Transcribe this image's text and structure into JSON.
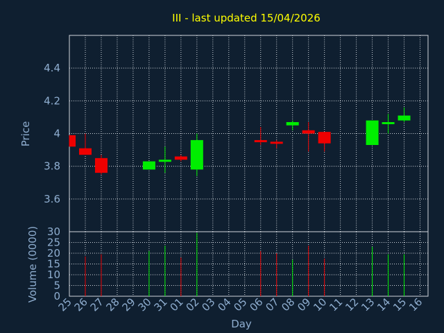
{
  "chart_data": {
    "type": "candlestick",
    "title": "III - last updated 15/04/2026",
    "xlabel": "Day",
    "price_panel": {
      "ylabel": "Price",
      "ylim": [
        3.4,
        4.6
      ],
      "yticks": [
        "3.6",
        "3.8",
        "4",
        "4.2",
        "4.4"
      ],
      "grid": true
    },
    "volume_panel": {
      "ylabel": "Volume (0000)",
      "ylim": [
        0,
        30
      ],
      "yticks": [
        "0",
        "5",
        "10",
        "15",
        "20",
        "25",
        "30"
      ],
      "grid": true
    },
    "x_tick_labels": [
      "25",
      "26",
      "27",
      "28",
      "29",
      "30",
      "31",
      "01",
      "02",
      "03",
      "04",
      "05",
      "06",
      "07",
      "08",
      "09",
      "10",
      "11",
      "12",
      "13",
      "14",
      "15",
      "16"
    ],
    "colors": {
      "up": "#00ee00",
      "down": "#ee0000"
    },
    "candles": [
      {
        "day": "25",
        "open": 3.99,
        "high": 3.99,
        "low": 3.92,
        "close": 3.92,
        "volume": null
      },
      {
        "day": "26",
        "open": 3.91,
        "high": 4.0,
        "low": 3.87,
        "close": 3.87,
        "volume": 18.5
      },
      {
        "day": "27",
        "open": 3.85,
        "high": 3.87,
        "low": 3.75,
        "close": 3.76,
        "volume": 19.5
      },
      {
        "day": "30",
        "open": 3.78,
        "high": 3.83,
        "low": 3.78,
        "close": 3.83,
        "volume": 21
      },
      {
        "day": "31",
        "open": 3.83,
        "high": 3.92,
        "low": 3.76,
        "close": 3.84,
        "volume": 23.5
      },
      {
        "day": "01",
        "open": 3.86,
        "high": 3.87,
        "low": 3.83,
        "close": 3.84,
        "volume": 18
      },
      {
        "day": "02",
        "open": 3.78,
        "high": 4.0,
        "low": 3.74,
        "close": 3.96,
        "volume": 29.5
      },
      {
        "day": "06",
        "open": 3.96,
        "high": 4.04,
        "low": 3.93,
        "close": 3.95,
        "volume": 21
      },
      {
        "day": "07",
        "open": 3.95,
        "high": 3.96,
        "low": 3.91,
        "close": 3.94,
        "volume": 20
      },
      {
        "day": "08",
        "open": 4.05,
        "high": 4.08,
        "low": 4.02,
        "close": 4.07,
        "volume": 17
      },
      {
        "day": "09",
        "open": 4.02,
        "high": 4.07,
        "low": 3.89,
        "close": 4.0,
        "volume": 23.5
      },
      {
        "day": "10",
        "open": 4.01,
        "high": 4.01,
        "low": 3.89,
        "close": 3.94,
        "volume": 17.5
      },
      {
        "day": "13",
        "open": 3.93,
        "high": 4.08,
        "low": 3.93,
        "close": 4.08,
        "volume": 23
      },
      {
        "day": "14",
        "open": 4.06,
        "high": 4.12,
        "low": 4.0,
        "close": 4.07,
        "volume": 19.5
      },
      {
        "day": "15",
        "open": 4.08,
        "high": 4.16,
        "low": 4.07,
        "close": 4.11,
        "volume": 19.5
      }
    ]
  }
}
